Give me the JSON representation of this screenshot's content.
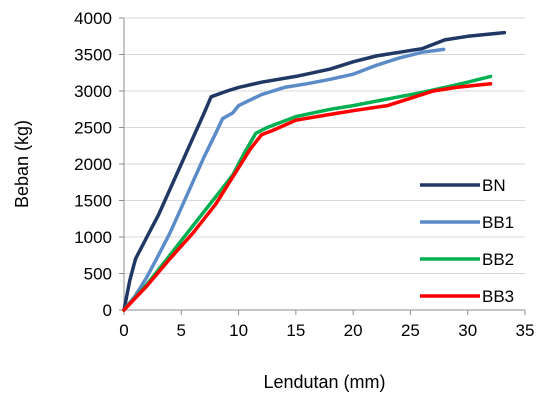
{
  "chart_data": {
    "type": "line",
    "xlabel": "Lendutan (mm)",
    "ylabel": "Beban (kg)",
    "xlim": [
      0,
      35
    ],
    "ylim": [
      0,
      4000
    ],
    "x_ticks": [
      "0",
      "5",
      "10",
      "15",
      "20",
      "25",
      "30",
      "35"
    ],
    "y_ticks": [
      "0",
      "500",
      "1000",
      "1500",
      "2000",
      "2500",
      "3000",
      "3500",
      "4000"
    ],
    "grid": "horizontal",
    "legend_position": "lower-right",
    "series": [
      {
        "name": "BN",
        "color": "#1f3864",
        "points": [
          [
            0,
            0
          ],
          [
            0.5,
            400
          ],
          [
            1,
            700
          ],
          [
            2,
            1000
          ],
          [
            3,
            1300
          ],
          [
            4,
            1650
          ],
          [
            5,
            2000
          ],
          [
            6,
            2350
          ],
          [
            7,
            2700
          ],
          [
            7.6,
            2920
          ],
          [
            9,
            3000
          ],
          [
            10,
            3050
          ],
          [
            12,
            3120
          ],
          [
            15,
            3200
          ],
          [
            18,
            3300
          ],
          [
            20,
            3400
          ],
          [
            22,
            3480
          ],
          [
            24,
            3530
          ],
          [
            26,
            3580
          ],
          [
            28,
            3700
          ],
          [
            30,
            3750
          ],
          [
            33.2,
            3800
          ]
        ]
      },
      {
        "name": "BB1",
        "color": "#5b8cc8",
        "points": [
          [
            0,
            0
          ],
          [
            1,
            200
          ],
          [
            2,
            450
          ],
          [
            3,
            750
          ],
          [
            4,
            1050
          ],
          [
            5,
            1400
          ],
          [
            6,
            1750
          ],
          [
            7,
            2100
          ],
          [
            8,
            2420
          ],
          [
            8.6,
            2620
          ],
          [
            9.5,
            2700
          ],
          [
            10,
            2800
          ],
          [
            12,
            2950
          ],
          [
            14,
            3050
          ],
          [
            16,
            3100
          ],
          [
            18,
            3160
          ],
          [
            20,
            3230
          ],
          [
            22,
            3350
          ],
          [
            24,
            3450
          ],
          [
            26,
            3530
          ],
          [
            27.9,
            3570
          ]
        ]
      },
      {
        "name": "BB2",
        "color": "#00b050",
        "points": [
          [
            0,
            0
          ],
          [
            2,
            350
          ],
          [
            4,
            750
          ],
          [
            6,
            1150
          ],
          [
            8,
            1550
          ],
          [
            9.5,
            1850
          ],
          [
            10.5,
            2150
          ],
          [
            11.5,
            2420
          ],
          [
            12.5,
            2500
          ],
          [
            15,
            2650
          ],
          [
            18,
            2750
          ],
          [
            20,
            2800
          ],
          [
            22,
            2860
          ],
          [
            24,
            2920
          ],
          [
            26,
            2980
          ],
          [
            28,
            3050
          ],
          [
            30,
            3120
          ],
          [
            32,
            3200
          ]
        ]
      },
      {
        "name": "BB3",
        "color": "#ff0000",
        "points": [
          [
            0,
            0
          ],
          [
            2,
            330
          ],
          [
            4,
            700
          ],
          [
            6,
            1050
          ],
          [
            8,
            1450
          ],
          [
            9,
            1700
          ],
          [
            10,
            1950
          ],
          [
            11,
            2200
          ],
          [
            12,
            2400
          ],
          [
            13,
            2460
          ],
          [
            15,
            2600
          ],
          [
            18,
            2680
          ],
          [
            20,
            2730
          ],
          [
            23,
            2800
          ],
          [
            25,
            2900
          ],
          [
            27,
            3000
          ],
          [
            29,
            3050
          ],
          [
            32,
            3100
          ]
        ]
      }
    ]
  }
}
